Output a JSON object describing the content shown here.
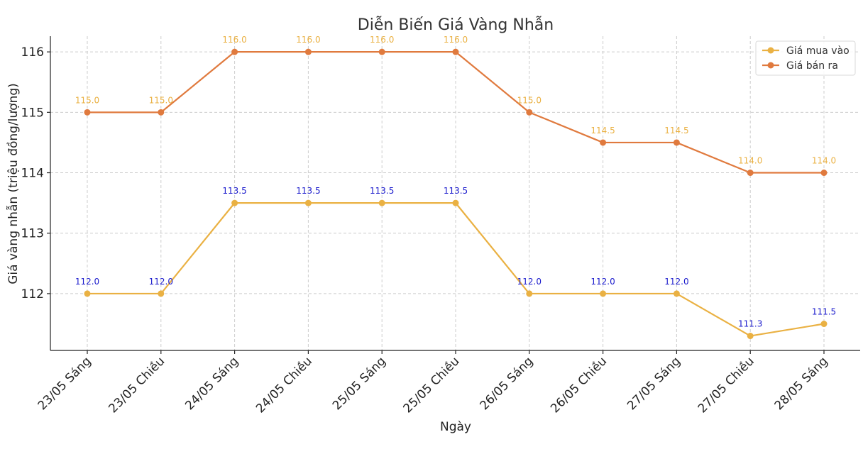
{
  "chart_data": {
    "type": "line",
    "title": "Diễn Biến Giá Vàng Nhẫn",
    "xlabel": "Ngày",
    "ylabel": "Giá vàng nhẫn (triệu đồng/lượng)",
    "categories": [
      "23/05 Sáng",
      "23/05 Chiều",
      "24/05 Sáng",
      "24/05 Chiều",
      "25/05 Sáng",
      "25/05 Chiều",
      "26/05 Sáng",
      "26/05 Chiều",
      "27/05 Sáng",
      "27/05 Chiều",
      "28/05 Sáng"
    ],
    "ylim": [
      111.06,
      116.26
    ],
    "yticks": [
      112,
      113,
      114,
      115,
      116
    ],
    "grid": true,
    "legend_position": "top-right",
    "series": [
      {
        "name": "Giá mua vào",
        "color": "#eab143",
        "label_color": "#1a1acc",
        "values": [
          112.0,
          112.0,
          113.5,
          113.5,
          113.5,
          113.5,
          112.0,
          112.0,
          112.0,
          111.3,
          111.5
        ],
        "labels": [
          "112.0",
          "112.0",
          "113.5",
          "113.5",
          "113.5",
          "113.5",
          "112.0",
          "112.0",
          "112.0",
          "111.3",
          "111.5"
        ]
      },
      {
        "name": "Giá bán ra",
        "color": "#e07a3e",
        "label_color": "#eab143",
        "values": [
          115.0,
          115.0,
          116.0,
          116.0,
          116.0,
          116.0,
          115.0,
          114.5,
          114.5,
          114.0,
          114.0
        ],
        "labels": [
          "115.0",
          "115.0",
          "116.0",
          "116.0",
          "116.0",
          "116.0",
          "115.0",
          "114.5",
          "114.5",
          "114.0",
          "114.0"
        ]
      }
    ]
  }
}
